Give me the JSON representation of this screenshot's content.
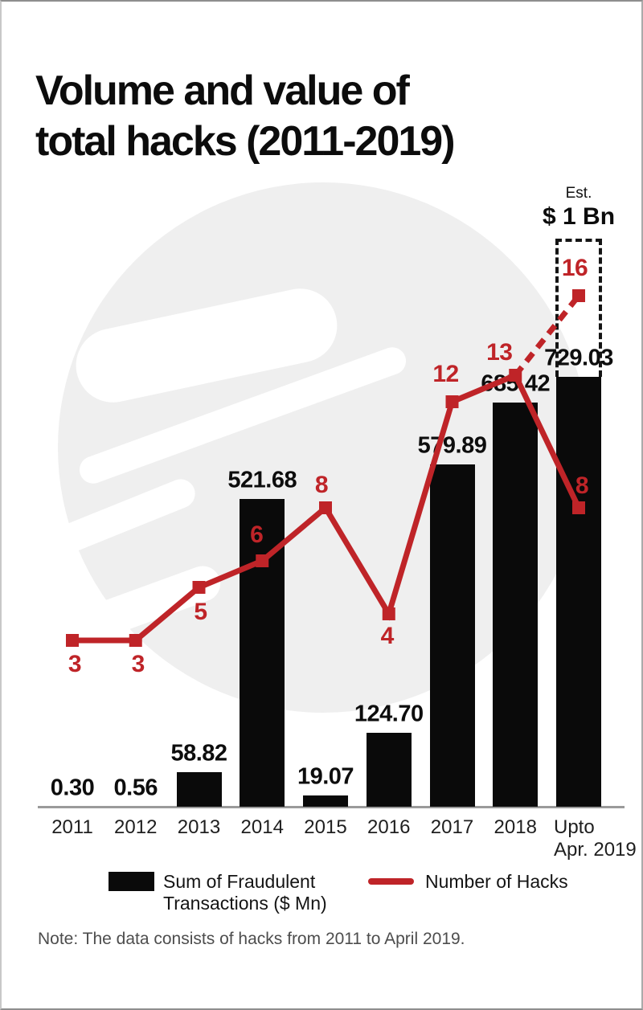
{
  "page": {
    "title": "Volume and value of\ntotal hacks (2011-2019)",
    "note": "Note: The data consists of hacks from 2011 to April 2019."
  },
  "legend": {
    "bars_label": "Sum of Fraudulent\nTransactions ($ Mn)",
    "line_label": "Number of Hacks"
  },
  "colors": {
    "accent_red": "#bf2428",
    "bar_black": "#0a0a0a",
    "axis_gray": "#9a9a9a",
    "watermark_gray": "#efefef"
  },
  "chart_data": {
    "type": "bar",
    "subtype": "bar-and-line-combo",
    "title": "Volume and value of total hacks (2011-2019)",
    "categories": [
      "2011",
      "2012",
      "2013",
      "2014",
      "2015",
      "2016",
      "2017",
      "2018",
      "Upto\nApr. 2019"
    ],
    "series": [
      {
        "name": "Sum of Fraudulent Transactions ($ Mn)",
        "type": "bar",
        "values": [
          0.3,
          0.56,
          58.82,
          521.68,
          19.07,
          124.7,
          579.89,
          685.42,
          729.03
        ],
        "labels": [
          "0.30",
          "0.56",
          "58.82",
          "521.68",
          "19.07",
          "124.70",
          "579.89",
          "685.42",
          "729.03"
        ]
      },
      {
        "name": "Number of Hacks",
        "type": "line",
        "values": [
          3,
          3,
          5,
          6,
          8,
          4,
          12,
          13,
          8
        ],
        "labels": [
          "3",
          "3",
          "5",
          "6",
          "8",
          "4",
          "12",
          "13",
          "8"
        ]
      }
    ],
    "estimate": {
      "caption_word": "Est.",
      "caption_value": "$ 1 Bn",
      "hacks_value": 16,
      "hacks_label": "16",
      "applies_to_category": "Upto Apr. 2019",
      "style": "dashed"
    },
    "xlabel": "",
    "ylabel": "",
    "grid": false,
    "legend_position": "bottom"
  }
}
